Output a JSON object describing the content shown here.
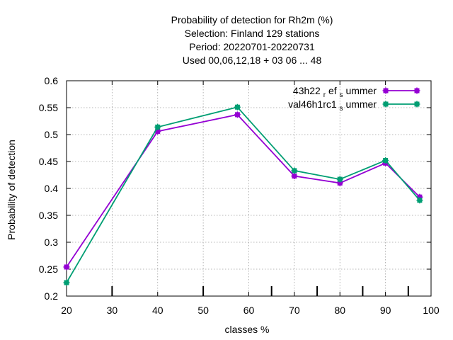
{
  "chart_data": {
    "type": "line",
    "title_lines": [
      "Probability of detection  for Rh2m (%)",
      "Selection: Finland    129 stations",
      "Period: 20220701-20220731",
      "Used  00,06,12,18  + 03 06 ... 48"
    ],
    "xlabel": "classes %",
    "ylabel": "Probability of detection",
    "xlim": [
      20,
      100
    ],
    "ylim": [
      0.2,
      0.6
    ],
    "xticks": [
      20,
      30,
      40,
      50,
      60,
      70,
      80,
      90,
      100
    ],
    "yticks": [
      0.2,
      0.25,
      0.3,
      0.35,
      0.4,
      0.45,
      0.5,
      0.55,
      0.6
    ],
    "ytick_labels": [
      "0.2",
      "0.25",
      "0.3",
      "0.35",
      "0.4",
      "0.45",
      "0.5",
      "0.55",
      "0.6"
    ],
    "minor_xticks_bottom": [
      30,
      50,
      65,
      75,
      85,
      95
    ],
    "grid": true,
    "legend_position": "top-right",
    "series": [
      {
        "label_main": "43h22",
        "label_sub1": "r",
        "label_mid": "ef",
        "label_sub2": "s",
        "label_tail": "ummer",
        "color": "#9400d3",
        "marker": "plus-square",
        "x": [
          20,
          40,
          57.5,
          70,
          80,
          90,
          97.5
        ],
        "y": [
          0.254,
          0.506,
          0.537,
          0.423,
          0.41,
          0.447,
          0.384
        ]
      },
      {
        "label_main": "val46h1rc1",
        "label_sub1": "s",
        "label_tail": "ummer",
        "color": "#009e73",
        "marker": "plus-square",
        "x": [
          20,
          40,
          57.5,
          70,
          80,
          90,
          97.5
        ],
        "y": [
          0.225,
          0.514,
          0.551,
          0.433,
          0.417,
          0.452,
          0.378
        ]
      }
    ]
  }
}
